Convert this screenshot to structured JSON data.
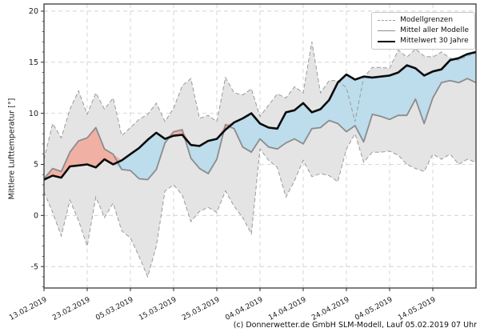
{
  "figure": {
    "ylabel": "Mittlere Lufttemperatur [°]",
    "caption": "(c) Donnerwetter.de GmbH SLM-Modell, Lauf 05.02.2019 07 Uhr",
    "legend": {
      "position": "upper right",
      "items": [
        {
          "label": "Modellgrenzen",
          "line": "dashed-gray"
        },
        {
          "label": "Mittel aller Modelle",
          "line": "solid-gray"
        },
        {
          "label": "Mittelwert 30 Jahre",
          "line": "thick-black"
        }
      ]
    },
    "colors": {
      "background": "#ffffff",
      "band": "#e4e4e4",
      "band_edge": "#9a9a9a",
      "model_mean": "#8c8c8c",
      "climate_mean": "#0a0a0a",
      "warmer": "#f1b0a4",
      "colder": "#bddcec",
      "grid": "#cdcdcd",
      "spine": "#2a2a2a",
      "tick_text": "#1a1a1a"
    }
  },
  "chart_data": {
    "type": "line",
    "title": "",
    "xlabel": "",
    "ylabel": "Mittlere Lufttemperatur [°]",
    "grid": true,
    "legend_position": "upper right",
    "xlim_days": [
      0,
      100
    ],
    "ylim": [
      -7.1,
      20.7
    ],
    "yticks": [
      -5,
      0,
      5,
      10,
      15,
      20
    ],
    "xtick_days": [
      0,
      10,
      20,
      30,
      40,
      50,
      60,
      70,
      80,
      90
    ],
    "xtick_labels": [
      "13.02.2019",
      "23.02.2019",
      "05.03.2019",
      "15.03.2019",
      "25.03.2019",
      "04.04.2019",
      "14.04.2019",
      "24.04.2019",
      "04.05.2019",
      "14.05.2019"
    ],
    "x_day_index": [
      0,
      2,
      4,
      6,
      8,
      10,
      12,
      14,
      16,
      18,
      20,
      22,
      24,
      26,
      28,
      30,
      32,
      34,
      36,
      38,
      40,
      42,
      44,
      46,
      48,
      50,
      52,
      54,
      56,
      58,
      60,
      62,
      64,
      66,
      68,
      70,
      72,
      74,
      76,
      78,
      80,
      82,
      84,
      86,
      88,
      90,
      92,
      94,
      96,
      98,
      100
    ],
    "series": [
      {
        "name": "Modellgrenzen (Obergrenze)",
        "role": "upper_bound",
        "line": "dashed",
        "values": [
          5.5,
          9.0,
          7.6,
          10.4,
          12.2,
          9.9,
          12.0,
          10.4,
          11.5,
          7.8,
          8.6,
          9.4,
          9.9,
          11.0,
          9.2,
          10.5,
          12.7,
          13.4,
          9.5,
          9.8,
          9.2,
          13.5,
          12.0,
          11.8,
          12.4,
          9.7,
          10.8,
          11.9,
          11.5,
          12.6,
          12.0,
          17.0,
          12.0,
          13.2,
          13.2,
          12.5,
          9.2,
          13.5,
          14.5,
          14.5,
          14.4,
          16.2,
          15.5,
          16.3,
          15.6,
          15.5,
          16.0,
          15.4,
          15.2,
          15.6,
          15.9
        ]
      },
      {
        "name": "Modellgrenzen (Untergrenze)",
        "role": "lower_bound",
        "line": "dashed",
        "values": [
          2.3,
          0.3,
          -2.0,
          1.5,
          -0.5,
          -3.0,
          1.8,
          -0.2,
          1.2,
          -1.5,
          -2.2,
          -4.0,
          -6.0,
          -3.0,
          2.4,
          3.0,
          2.0,
          -0.6,
          0.4,
          0.8,
          0.3,
          2.4,
          0.9,
          -0.2,
          -1.8,
          6.5,
          5.4,
          4.7,
          1.8,
          3.4,
          5.4,
          3.8,
          4.1,
          3.9,
          3.3,
          6.5,
          8.0,
          5.2,
          6.2,
          6.2,
          6.3,
          5.9,
          5.0,
          4.6,
          4.3,
          6.0,
          5.5,
          6.0,
          5.0,
          5.5,
          5.2
        ]
      },
      {
        "name": "Mittel aller Modelle",
        "role": "model_mean",
        "line": "solid",
        "values": [
          3.6,
          4.6,
          4.3,
          6.2,
          7.3,
          7.6,
          8.6,
          6.5,
          6.0,
          4.5,
          4.4,
          3.6,
          3.5,
          4.5,
          7.1,
          8.2,
          8.4,
          5.6,
          4.6,
          4.1,
          5.5,
          8.9,
          8.5,
          6.7,
          6.2,
          7.5,
          6.7,
          6.5,
          7.1,
          7.5,
          7.0,
          8.5,
          8.6,
          9.3,
          9.0,
          8.2,
          8.8,
          7.2,
          9.9,
          9.7,
          9.4,
          9.8,
          9.8,
          11.4,
          9.0,
          11.5,
          13.0,
          13.2,
          13.0,
          13.4,
          13.0
        ]
      },
      {
        "name": "Mittelwert 30 Jahre",
        "role": "climate_mean_30y",
        "line": "solid-thick",
        "values": [
          3.5,
          3.9,
          3.7,
          4.8,
          4.9,
          5.0,
          4.7,
          5.5,
          5.0,
          5.4,
          6.0,
          6.6,
          7.4,
          8.1,
          7.5,
          7.8,
          7.9,
          6.9,
          6.8,
          7.3,
          7.5,
          8.4,
          9.1,
          9.5,
          10.0,
          9.0,
          8.6,
          8.5,
          10.1,
          10.3,
          11.0,
          10.1,
          10.4,
          11.3,
          13.0,
          13.8,
          13.3,
          13.6,
          13.5,
          13.6,
          13.7,
          14.0,
          14.7,
          14.4,
          13.7,
          14.1,
          14.3,
          15.2,
          15.4,
          15.8,
          16.0
        ]
      }
    ],
    "fills": [
      {
        "name": "model-range-band",
        "between": [
          "upper_bound",
          "lower_bound"
        ],
        "color_key": "band"
      },
      {
        "name": "warmer-than-climate",
        "between": [
          "model_mean",
          "climate_mean_30y"
        ],
        "where": "model_mean > climate_mean",
        "color_key": "warmer"
      },
      {
        "name": "colder-than-climate",
        "between": [
          "model_mean",
          "climate_mean_30y"
        ],
        "where": "model_mean < climate_mean",
        "color_key": "colder"
      }
    ]
  }
}
